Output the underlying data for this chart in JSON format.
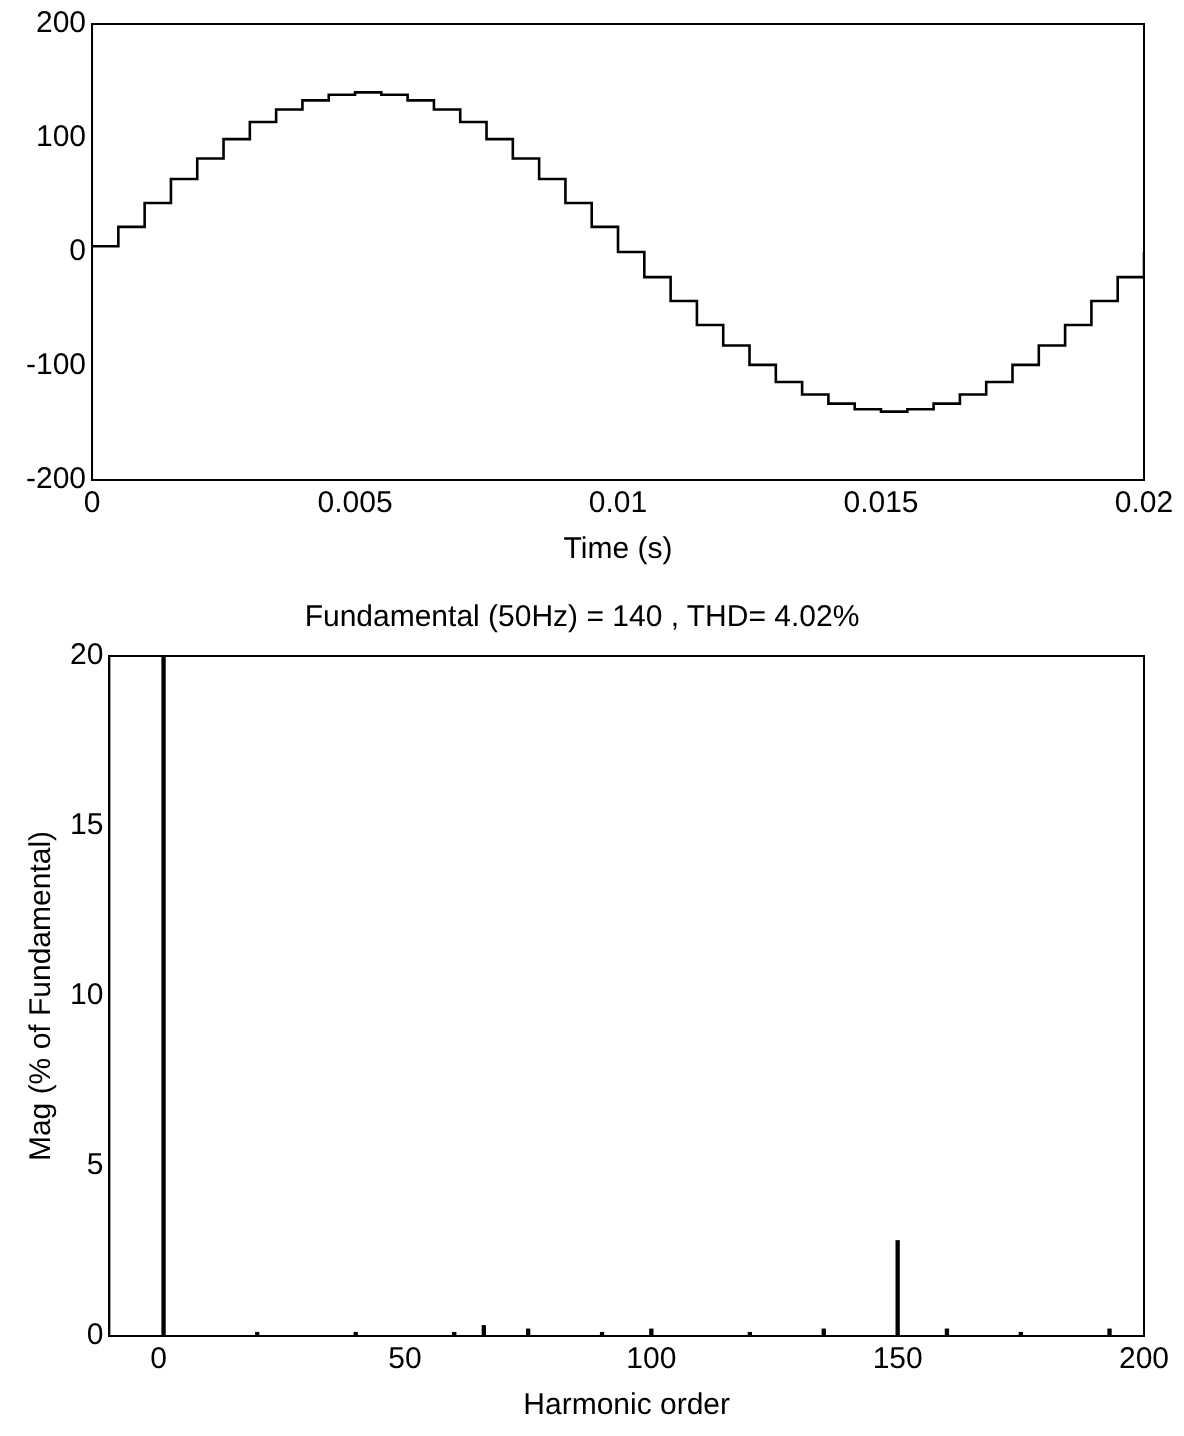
{
  "chart_data": [
    {
      "type": "step",
      "xlabel": "Time (s)",
      "x": [
        0,
        0.0005,
        0.001,
        0.0015,
        0.002,
        0.0025,
        0.003,
        0.0035,
        0.004,
        0.0045,
        0.005,
        0.0055,
        0.006,
        0.0065,
        0.007,
        0.0075,
        0.008,
        0.0085,
        0.009,
        0.0095,
        0.01,
        0.0105,
        0.011,
        0.0115,
        0.012,
        0.0125,
        0.013,
        0.0135,
        0.014,
        0.0145,
        0.015,
        0.0155,
        0.016,
        0.0165,
        0.017,
        0.0175,
        0.018,
        0.0185,
        0.019,
        0.0195,
        0.02
      ],
      "series": [
        {
          "color": "#000000",
          "values": [
            5,
            22,
            43,
            64,
            82,
            99,
            114,
            125,
            133,
            138,
            140,
            138,
            133,
            125,
            114,
            99,
            82,
            64,
            43,
            22,
            0,
            -22,
            -43,
            -64,
            -82,
            -99,
            -114,
            -125,
            -133,
            -138,
            -140,
            -138,
            -133,
            -125,
            -114,
            -99,
            -82,
            -64,
            -43,
            -22,
            0
          ]
        }
      ],
      "xlim": [
        0,
        0.02
      ],
      "xticks": [
        0,
        0.005,
        0.01,
        0.015,
        0.02
      ],
      "ylim": [
        -200,
        200
      ],
      "yticks": [
        -200,
        -100,
        0,
        100,
        200
      ],
      "grid": false,
      "legend": false
    },
    {
      "type": "bar",
      "title": "Fundamental (50Hz) = 140 , THD= 4.02%",
      "xlabel": "Harmonic order",
      "ylabel": "Mag (% of Fundamental)",
      "x": [
        1,
        20,
        40,
        60,
        66,
        75,
        90,
        100,
        120,
        135,
        150,
        160,
        175,
        193
      ],
      "series": [
        {
          "color": "#000000",
          "values": [
            20,
            0.1,
            0.1,
            0.1,
            0.3,
            0.2,
            0.1,
            0.2,
            0.1,
            0.2,
            2.8,
            0.2,
            0.1,
            0.2
          ]
        }
      ],
      "xlim": [
        -10,
        200
      ],
      "xticks": [
        0,
        50,
        100,
        150,
        200
      ],
      "ylim": [
        0,
        20
      ],
      "yticks": [
        0,
        5,
        10,
        15,
        20
      ],
      "grid": false,
      "legend": false
    }
  ]
}
